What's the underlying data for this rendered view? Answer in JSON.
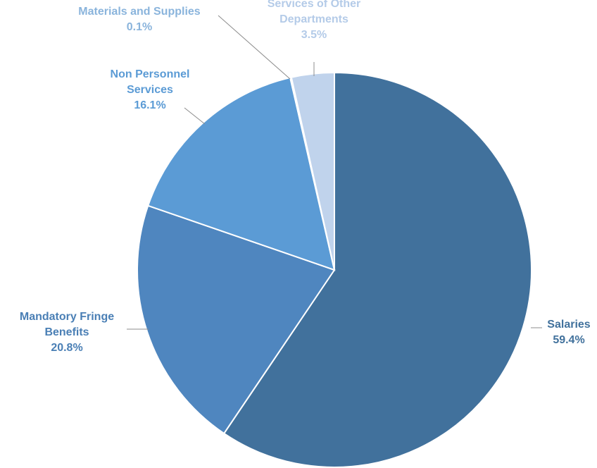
{
  "chart_data": {
    "type": "pie",
    "start": "12 o'clock",
    "direction": "clockwise",
    "slices": [
      {
        "name": "Salaries",
        "percent_label": "59.4%",
        "value": 59.4,
        "color": "#41719c",
        "label_color": "#41719c",
        "label_lines": [
          "Salaries"
        ]
      },
      {
        "name": "Mandatory Fringe Benefits",
        "percent_label": "20.8%",
        "value": 20.8,
        "color": "#4f86bf",
        "label_color": "#4a7fb5",
        "label_lines": [
          "Mandatory Fringe",
          "Benefits"
        ]
      },
      {
        "name": "Non Personnel Services",
        "percent_label": "16.1%",
        "value": 16.1,
        "color": "#5b9bd5",
        "label_color": "#5b9bd5",
        "label_lines": [
          "Non Personnel",
          "Services"
        ]
      },
      {
        "name": "Materials and Supplies",
        "percent_label": "0.1%",
        "value": 0.1,
        "color": "#9dc3e6",
        "label_color": "#8ab4dc",
        "label_lines": [
          "Materials and Supplies"
        ]
      },
      {
        "name": "Services of Other Departments",
        "percent_label": "3.5%",
        "value": 3.5,
        "color": "#c0d3ec",
        "label_color": "#b4cbe8",
        "label_lines": [
          "Services of Other",
          "Departments"
        ]
      }
    ],
    "title": "",
    "legend": "none",
    "leader_line_color": "#8c8c8c"
  }
}
